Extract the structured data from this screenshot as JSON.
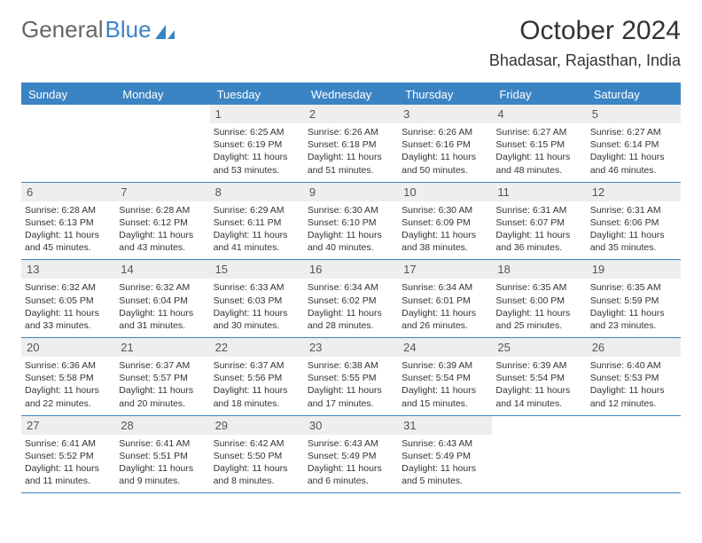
{
  "logo": {
    "text1": "General",
    "text2": "Blue",
    "shape_color": "#3b84c4",
    "text1_color": "#666666"
  },
  "title": "October 2024",
  "location": "Bhadasar, Rajasthan, India",
  "colors": {
    "accent": "#3b84c4",
    "daynum_bg": "#eeeeee",
    "text": "#333333",
    "background": "#ffffff"
  },
  "dow": [
    "Sunday",
    "Monday",
    "Tuesday",
    "Wednesday",
    "Thursday",
    "Friday",
    "Saturday"
  ],
  "weeks": [
    [
      null,
      null,
      {
        "n": "1",
        "sunrise": "6:25 AM",
        "sunset": "6:19 PM",
        "daylight": "11 hours and 53 minutes."
      },
      {
        "n": "2",
        "sunrise": "6:26 AM",
        "sunset": "6:18 PM",
        "daylight": "11 hours and 51 minutes."
      },
      {
        "n": "3",
        "sunrise": "6:26 AM",
        "sunset": "6:16 PM",
        "daylight": "11 hours and 50 minutes."
      },
      {
        "n": "4",
        "sunrise": "6:27 AM",
        "sunset": "6:15 PM",
        "daylight": "11 hours and 48 minutes."
      },
      {
        "n": "5",
        "sunrise": "6:27 AM",
        "sunset": "6:14 PM",
        "daylight": "11 hours and 46 minutes."
      }
    ],
    [
      {
        "n": "6",
        "sunrise": "6:28 AM",
        "sunset": "6:13 PM",
        "daylight": "11 hours and 45 minutes."
      },
      {
        "n": "7",
        "sunrise": "6:28 AM",
        "sunset": "6:12 PM",
        "daylight": "11 hours and 43 minutes."
      },
      {
        "n": "8",
        "sunrise": "6:29 AM",
        "sunset": "6:11 PM",
        "daylight": "11 hours and 41 minutes."
      },
      {
        "n": "9",
        "sunrise": "6:30 AM",
        "sunset": "6:10 PM",
        "daylight": "11 hours and 40 minutes."
      },
      {
        "n": "10",
        "sunrise": "6:30 AM",
        "sunset": "6:09 PM",
        "daylight": "11 hours and 38 minutes."
      },
      {
        "n": "11",
        "sunrise": "6:31 AM",
        "sunset": "6:07 PM",
        "daylight": "11 hours and 36 minutes."
      },
      {
        "n": "12",
        "sunrise": "6:31 AM",
        "sunset": "6:06 PM",
        "daylight": "11 hours and 35 minutes."
      }
    ],
    [
      {
        "n": "13",
        "sunrise": "6:32 AM",
        "sunset": "6:05 PM",
        "daylight": "11 hours and 33 minutes."
      },
      {
        "n": "14",
        "sunrise": "6:32 AM",
        "sunset": "6:04 PM",
        "daylight": "11 hours and 31 minutes."
      },
      {
        "n": "15",
        "sunrise": "6:33 AM",
        "sunset": "6:03 PM",
        "daylight": "11 hours and 30 minutes."
      },
      {
        "n": "16",
        "sunrise": "6:34 AM",
        "sunset": "6:02 PM",
        "daylight": "11 hours and 28 minutes."
      },
      {
        "n": "17",
        "sunrise": "6:34 AM",
        "sunset": "6:01 PM",
        "daylight": "11 hours and 26 minutes."
      },
      {
        "n": "18",
        "sunrise": "6:35 AM",
        "sunset": "6:00 PM",
        "daylight": "11 hours and 25 minutes."
      },
      {
        "n": "19",
        "sunrise": "6:35 AM",
        "sunset": "5:59 PM",
        "daylight": "11 hours and 23 minutes."
      }
    ],
    [
      {
        "n": "20",
        "sunrise": "6:36 AM",
        "sunset": "5:58 PM",
        "daylight": "11 hours and 22 minutes."
      },
      {
        "n": "21",
        "sunrise": "6:37 AM",
        "sunset": "5:57 PM",
        "daylight": "11 hours and 20 minutes."
      },
      {
        "n": "22",
        "sunrise": "6:37 AM",
        "sunset": "5:56 PM",
        "daylight": "11 hours and 18 minutes."
      },
      {
        "n": "23",
        "sunrise": "6:38 AM",
        "sunset": "5:55 PM",
        "daylight": "11 hours and 17 minutes."
      },
      {
        "n": "24",
        "sunrise": "6:39 AM",
        "sunset": "5:54 PM",
        "daylight": "11 hours and 15 minutes."
      },
      {
        "n": "25",
        "sunrise": "6:39 AM",
        "sunset": "5:54 PM",
        "daylight": "11 hours and 14 minutes."
      },
      {
        "n": "26",
        "sunrise": "6:40 AM",
        "sunset": "5:53 PM",
        "daylight": "11 hours and 12 minutes."
      }
    ],
    [
      {
        "n": "27",
        "sunrise": "6:41 AM",
        "sunset": "5:52 PM",
        "daylight": "11 hours and 11 minutes."
      },
      {
        "n": "28",
        "sunrise": "6:41 AM",
        "sunset": "5:51 PM",
        "daylight": "11 hours and 9 minutes."
      },
      {
        "n": "29",
        "sunrise": "6:42 AM",
        "sunset": "5:50 PM",
        "daylight": "11 hours and 8 minutes."
      },
      {
        "n": "30",
        "sunrise": "6:43 AM",
        "sunset": "5:49 PM",
        "daylight": "11 hours and 6 minutes."
      },
      {
        "n": "31",
        "sunrise": "6:43 AM",
        "sunset": "5:49 PM",
        "daylight": "11 hours and 5 minutes."
      },
      null,
      null
    ]
  ],
  "labels": {
    "sunrise": "Sunrise:",
    "sunset": "Sunset:",
    "daylight": "Daylight:"
  }
}
